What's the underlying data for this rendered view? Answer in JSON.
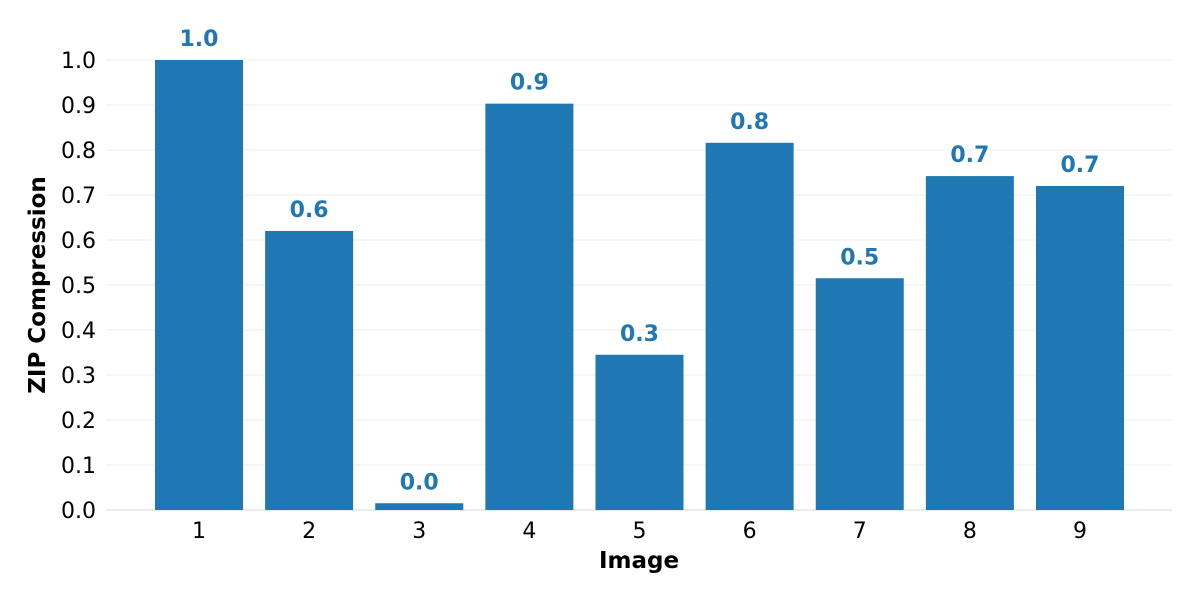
{
  "chart_data": {
    "type": "bar",
    "title": "",
    "xlabel": "Image",
    "ylabel": "ZIP Compression",
    "categories": [
      "1",
      "2",
      "3",
      "4",
      "5",
      "6",
      "7",
      "8",
      "9"
    ],
    "values": [
      1.0,
      0.62,
      0.015,
      0.903,
      0.345,
      0.816,
      0.515,
      0.742,
      0.72
    ],
    "data_labels": [
      "1.0",
      "0.6",
      "0.0",
      "0.9",
      "0.3",
      "0.8",
      "0.5",
      "0.7",
      "0.7"
    ],
    "ylim": [
      0,
      1.0
    ],
    "yticks": [
      "0.0",
      "0.1",
      "0.2",
      "0.3",
      "0.4",
      "0.5",
      "0.6",
      "0.7",
      "0.8",
      "0.9",
      "1.0"
    ],
    "grid": true,
    "bar_color": "#1f77b4",
    "label_color": "#1f77b4"
  }
}
